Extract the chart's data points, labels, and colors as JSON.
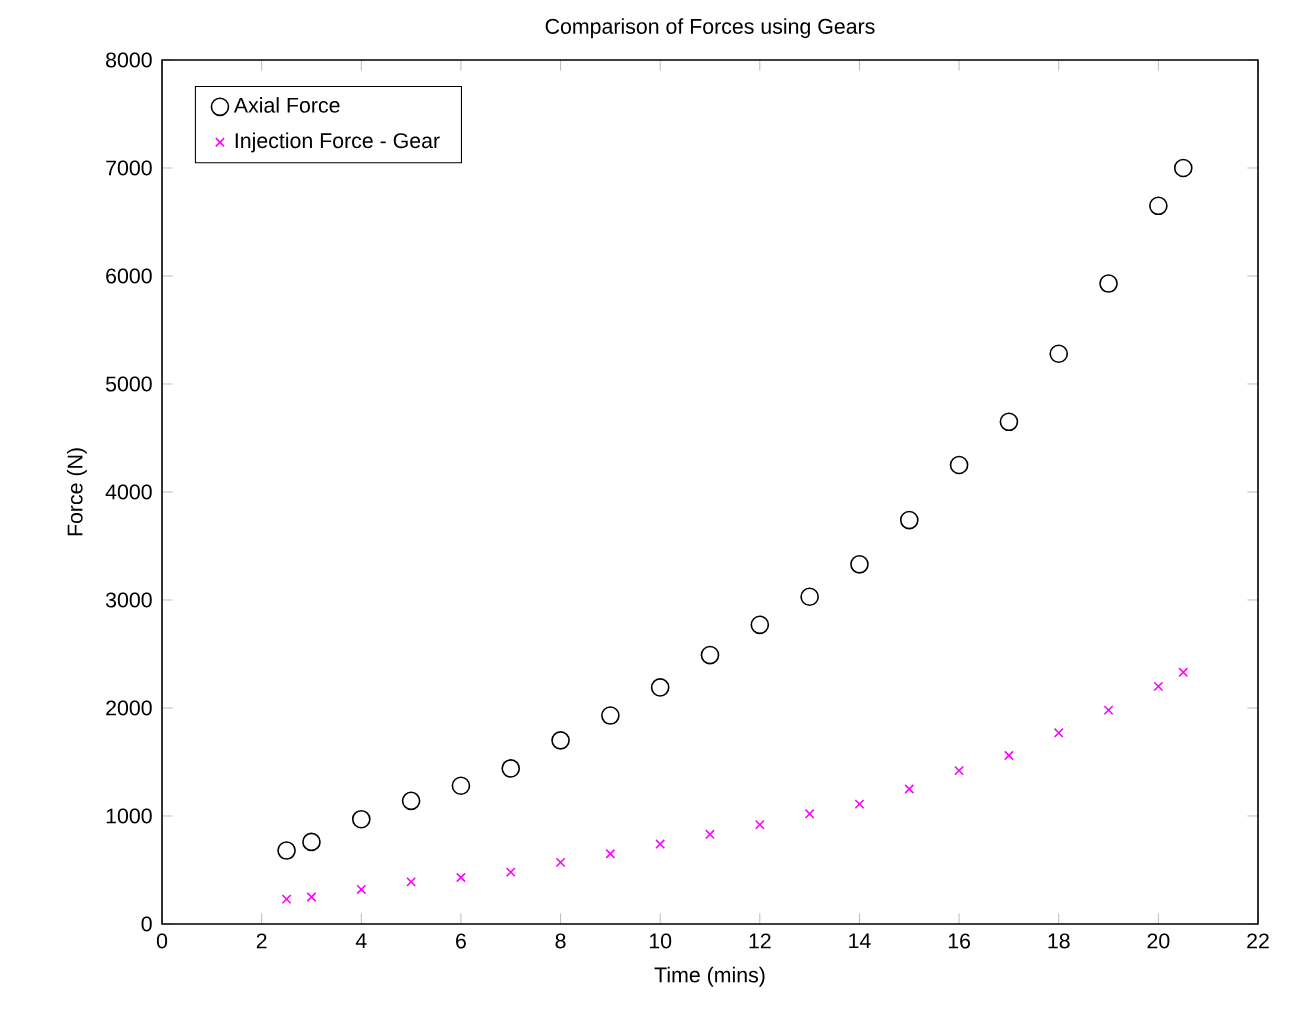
{
  "chart_data": {
    "type": "scatter",
    "title": "Comparison of Forces using Gears",
    "xlabel": "Time (mins)",
    "ylabel": "Force (N)",
    "x": [
      2.5,
      3,
      4,
      5,
      6,
      7,
      8,
      9,
      10,
      11,
      12,
      13,
      14,
      15,
      16,
      17,
      18,
      19,
      20,
      20.5
    ],
    "series": [
      {
        "name": "Axial Force",
        "color": "#000000",
        "marker": "circle",
        "values": [
          680,
          760,
          970,
          1140,
          1280,
          1440,
          1700,
          1930,
          2190,
          2490,
          2770,
          3030,
          3330,
          3740,
          4250,
          4650,
          5280,
          5930,
          6650,
          7000
        ]
      },
      {
        "name": "Injection Force - Gear",
        "color": "#ff00ff",
        "marker": "cross",
        "values": [
          230,
          250,
          320,
          390,
          430,
          480,
          570,
          650,
          740,
          830,
          920,
          1020,
          1110,
          1250,
          1420,
          1560,
          1770,
          1980,
          2200,
          2330
        ]
      }
    ],
    "xlim": [
      0,
      22
    ],
    "xticks": [
      0,
      2,
      4,
      6,
      8,
      10,
      12,
      14,
      16,
      18,
      20,
      22
    ],
    "ylim": [
      0,
      8000
    ],
    "yticks": [
      0,
      1000,
      2000,
      3000,
      4000,
      5000,
      6000,
      7000,
      8000
    ],
    "grid": false,
    "legend": "top left"
  }
}
